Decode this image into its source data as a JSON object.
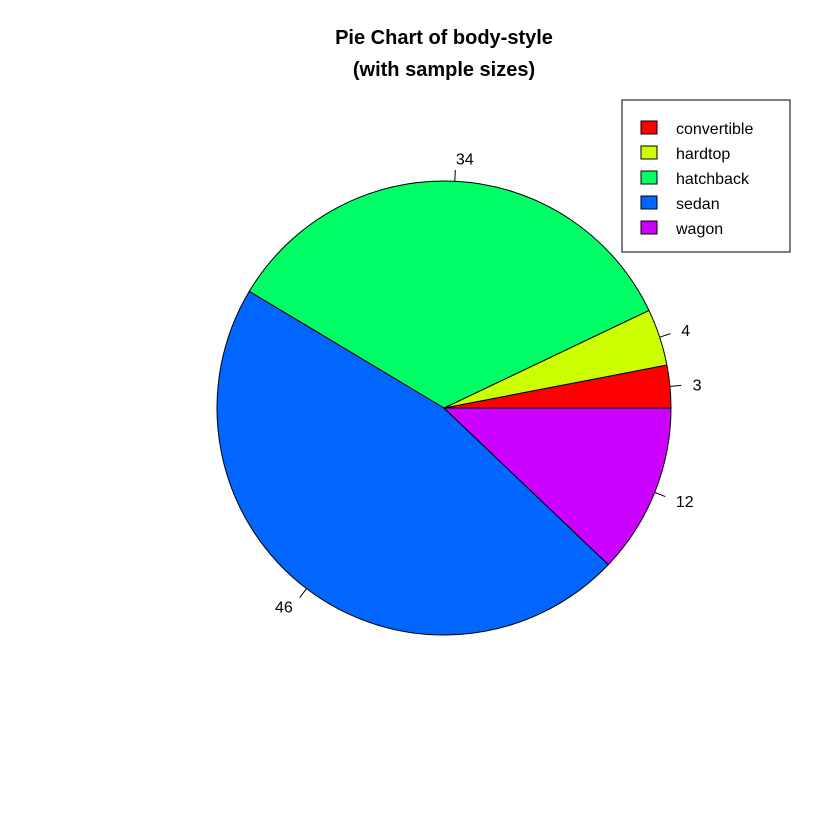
{
  "chart_data": {
    "type": "pie",
    "title": "Pie Chart of body-style",
    "subtitle": "(with sample sizes)",
    "direction": "counterclockwise",
    "start_angle_deg": 0,
    "slices": [
      {
        "name": "convertible",
        "value": 3,
        "label": "3",
        "color": "#FF0000"
      },
      {
        "name": "hardtop",
        "value": 4,
        "label": "4",
        "color": "#CCFF00"
      },
      {
        "name": "hatchback",
        "value": 34,
        "label": "34",
        "color": "#00FF66"
      },
      {
        "name": "sedan",
        "value": 46,
        "label": "46",
        "color": "#0066FF"
      },
      {
        "name": "wagon",
        "value": 12,
        "label": "12",
        "color": "#CC00FF"
      }
    ],
    "legend": {
      "position": "top-right",
      "entries": [
        "convertible",
        "hardtop",
        "hatchback",
        "sedan",
        "wagon"
      ]
    }
  }
}
